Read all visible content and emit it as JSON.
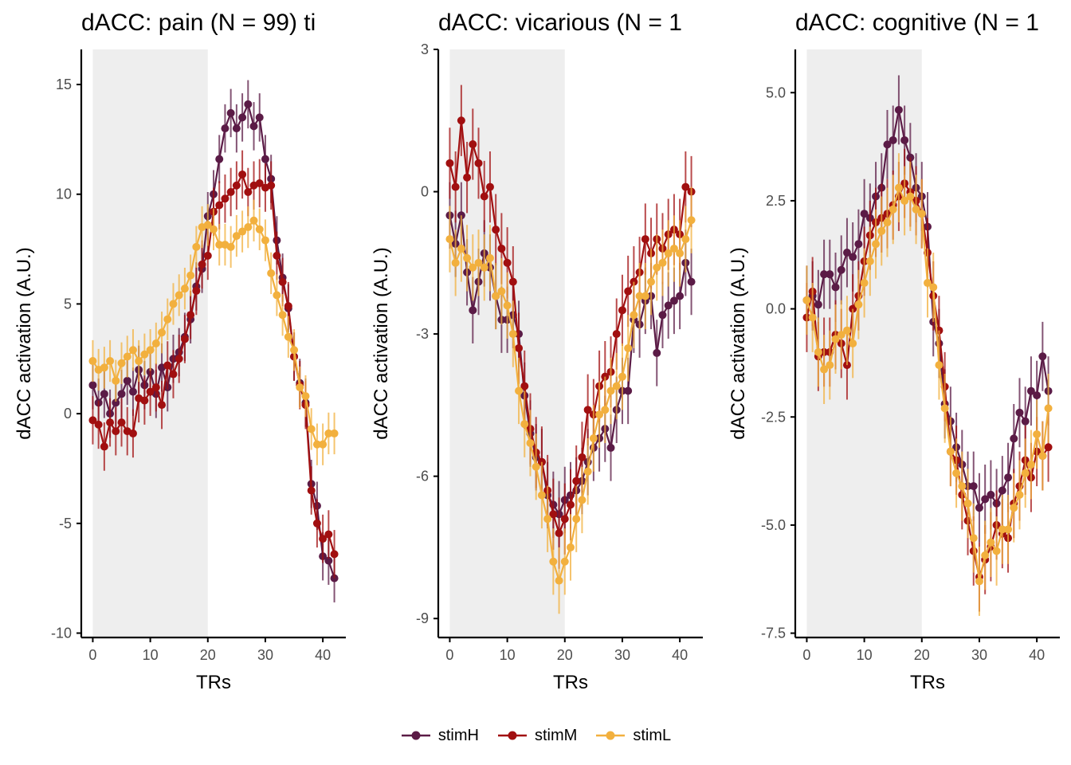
{
  "colors": {
    "stimH": "#5b1b46",
    "stimM": "#a10f10",
    "stimL": "#f2b03e",
    "axis": "#000000",
    "tick_text": "#4d4d4d",
    "shade": "#eeeeee"
  },
  "legend": {
    "items": [
      {
        "key": "stimH",
        "label": "stimH"
      },
      {
        "key": "stimM",
        "label": "stimM"
      },
      {
        "key": "stimL",
        "label": "stimL"
      }
    ]
  },
  "chart_data": [
    {
      "type": "line",
      "title": "dACC: pain (N = 99) ti",
      "xlabel": "TRs",
      "ylabel": "dACC activation (A.U.)",
      "xlim": [
        -2,
        44
      ],
      "ylim": [
        -10.2,
        16.6
      ],
      "xticks": [
        0,
        10,
        20,
        30,
        40
      ],
      "xtick_labels": [
        "0",
        "10",
        "20",
        "30",
        "40"
      ],
      "yticks": [
        -10,
        -5,
        0,
        5,
        10,
        15
      ],
      "ytick_labels": [
        "-10",
        "-5",
        "0",
        "5",
        "10",
        "15"
      ],
      "shade": [
        0,
        20
      ],
      "x_start": 0,
      "series": [
        {
          "name": "stimH",
          "err": 1.1,
          "values": [
            1.3,
            0.5,
            0.9,
            0,
            0.5,
            0.9,
            1.5,
            1,
            2,
            1.3,
            1.9,
            0.9,
            2.1,
            1.2,
            2.5,
            2.8,
            3.5,
            4.3,
            5.8,
            6.6,
            9,
            10,
            11.6,
            13,
            13.7,
            13,
            13.5,
            14.1,
            13.1,
            13.5,
            11.6,
            10.7,
            7.9,
            6.2,
            4.8,
            2.6,
            1.4,
            0.5,
            -3.2,
            -4.2,
            -6.5,
            -6.7,
            -7.5
          ]
        },
        {
          "name": "stimM",
          "err": 1.1,
          "values": [
            -0.3,
            -0.5,
            -1.5,
            -0.4,
            -0.8,
            -0.4,
            -0.8,
            -0.9,
            0.7,
            0.6,
            1,
            1.2,
            0.4,
            2.2,
            1.8,
            2.5,
            3.4,
            4.5,
            5.6,
            6.8,
            7.2,
            9.2,
            9.5,
            9.8,
            10.1,
            10.4,
            10.9,
            10.1,
            10.4,
            10.5,
            10.3,
            10.4,
            7.2,
            6,
            4.9,
            2.6,
            1.3,
            0.4,
            -3.5,
            -5,
            -5.7,
            -5.5,
            -6.4
          ]
        },
        {
          "name": "stimL",
          "err": 0.95,
          "values": [
            2.4,
            2,
            2.1,
            2.4,
            1.5,
            2.3,
            2.6,
            2.9,
            2.4,
            2.7,
            2.9,
            3.2,
            3.7,
            4.3,
            5,
            5.4,
            5.7,
            6.3,
            7.6,
            8.5,
            8.6,
            8.4,
            7.7,
            7.7,
            7.6,
            8.1,
            8.3,
            8.5,
            8.8,
            8.4,
            7.9,
            6.4,
            5.4,
            4.5,
            3.5,
            2.9,
            1.2,
            0.8,
            -0.7,
            -1.4,
            -1.4,
            -0.9,
            -0.9
          ]
        }
      ]
    },
    {
      "type": "line",
      "title": "dACC: vicarious (N = 1",
      "xlabel": "TRs",
      "ylabel": "dACC activation (A.U.)",
      "xlim": [
        -2,
        44
      ],
      "ylim": [
        -9.4,
        3
      ],
      "xticks": [
        0,
        10,
        20,
        30,
        40
      ],
      "xtick_labels": [
        "0",
        "10",
        "20",
        "30",
        "40"
      ],
      "yticks": [
        -9,
        -6,
        -3,
        0,
        3
      ],
      "ytick_labels": [
        "-9",
        "-6",
        "-3",
        "0",
        "3"
      ],
      "shade": [
        0,
        20
      ],
      "x_start": 0,
      "series": [
        {
          "name": "stimH",
          "err": 0.7,
          "values": [
            -0.5,
            -1.1,
            -0.5,
            -1.7,
            -2.5,
            -1.9,
            -1.3,
            -1.6,
            -2.2,
            -2.7,
            -2.7,
            -2.6,
            -3,
            -4.3,
            -5.1,
            -5.6,
            -5.7,
            -6.4,
            -6.6,
            -6.8,
            -6.5,
            -6.4,
            -6.3,
            -6.1,
            -5.7,
            -5.4,
            -5.2,
            -5,
            -5.4,
            -4.6,
            -4.2,
            -4.2,
            -2.7,
            -2.8,
            -2.3,
            -2.2,
            -3.4,
            -2.6,
            -2.4,
            -2.3,
            -2.2,
            -1.5,
            -1.9
          ]
        },
        {
          "name": "stimM",
          "err": 0.75,
          "values": [
            0.6,
            0.1,
            1.5,
            0.3,
            1,
            0.6,
            -0.1,
            0.1,
            -0.8,
            -1.2,
            -1.5,
            -1.9,
            -3.3,
            -4.1,
            -5,
            -5.5,
            -5.7,
            -6.3,
            -6.8,
            -7.2,
            -6.9,
            -6.6,
            -6.1,
            -5.6,
            -4.6,
            -4.7,
            -4.1,
            -3.9,
            -3.8,
            -3,
            -2.5,
            -2.1,
            -1.9,
            -1.7,
            -1,
            -1.3,
            -1,
            -1.2,
            -0.9,
            -0.8,
            -0.9,
            0.1,
            0
          ]
        },
        {
          "name": "stimL",
          "err": 0.7,
          "values": [
            -1,
            -1.5,
            -1.2,
            -1.4,
            -1.6,
            -1.5,
            -1.6,
            -1.4,
            -2.2,
            -2.1,
            -2.4,
            -3,
            -4.2,
            -4.9,
            -5.3,
            -5.8,
            -6.4,
            -6.9,
            -7.8,
            -8.2,
            -7.8,
            -7.5,
            -6.9,
            -6.5,
            -5.9,
            -5.2,
            -4.7,
            -4.6,
            -4.2,
            -4.1,
            -3.9,
            -3.3,
            -2.6,
            -2.2,
            -2.2,
            -1.9,
            -1.6,
            -1.5,
            -1.3,
            -1.2,
            -1.3,
            -1,
            -0.6
          ]
        }
      ]
    },
    {
      "type": "line",
      "title": "dACC: cognitive (N = 1",
      "xlabel": "TRs",
      "ylabel": "dACC activation (A.U.)",
      "xlim": [
        -2,
        44
      ],
      "ylim": [
        -7.6,
        6
      ],
      "xticks": [
        0,
        10,
        20,
        30,
        40
      ],
      "xtick_labels": [
        "0",
        "10",
        "20",
        "30",
        "40"
      ],
      "yticks": [
        -7.5,
        -5,
        -2.5,
        0,
        2.5,
        5
      ],
      "ytick_labels": [
        "-7.5",
        "-5.0",
        "-2.5",
        "0.0",
        "2.5",
        "5.0"
      ],
      "shade": [
        0,
        20
      ],
      "x_start": 0,
      "series": [
        {
          "name": "stimH",
          "err": 0.8,
          "values": [
            0.2,
            0.3,
            0.1,
            0.8,
            0.8,
            0.5,
            0.9,
            1.3,
            1.2,
            1.5,
            2.2,
            2.1,
            2.6,
            2.8,
            3.8,
            3.9,
            4.6,
            3.9,
            3.5,
            2.8,
            2.6,
            1.9,
            -0.3,
            -0.8,
            -2.2,
            -2.6,
            -3.2,
            -3.6,
            -4.1,
            -4.1,
            -4.6,
            -4.4,
            -4.3,
            -4.5,
            -4.2,
            -3.9,
            -3,
            -2.4,
            -2.6,
            -1.9,
            -2,
            -1.1,
            -1.9
          ]
        },
        {
          "name": "stimM",
          "err": 0.8,
          "values": [
            -0.2,
            0.4,
            -1.1,
            -1,
            -1,
            -0.6,
            -0.8,
            -1.3,
            0,
            0.3,
            1.1,
            1.7,
            2,
            2.1,
            2.2,
            2.4,
            2.6,
            2.9,
            2.7,
            2.5,
            2.2,
            1.3,
            0.3,
            -0.5,
            -1.8,
            -3.3,
            -3.5,
            -4.3,
            -4.9,
            -5.6,
            -6.2,
            -5.8,
            -5.5,
            -5,
            -5.2,
            -5.3,
            -4.5,
            -4.1,
            -3.5,
            -3.9,
            -3.3,
            -3.4,
            -3.2
          ]
        },
        {
          "name": "stimL",
          "err": 0.8,
          "values": [
            0.2,
            -0.2,
            -1,
            -1.4,
            -1.3,
            -0.7,
            -0.6,
            -0.5,
            -0.8,
            0.1,
            0.6,
            1.1,
            1.5,
            1.8,
            2,
            2.3,
            2.8,
            2.5,
            2.6,
            2.3,
            2.2,
            0.6,
            0.5,
            -1.3,
            -2.3,
            -3.3,
            -3.8,
            -4.1,
            -4.5,
            -5.3,
            -6.3,
            -5.7,
            -5.4,
            -5.6,
            -5.1,
            -5.1,
            -4.6,
            -4.3,
            -3.8,
            -3.6,
            -2.9,
            -3.4,
            -2.3
          ]
        }
      ]
    }
  ]
}
